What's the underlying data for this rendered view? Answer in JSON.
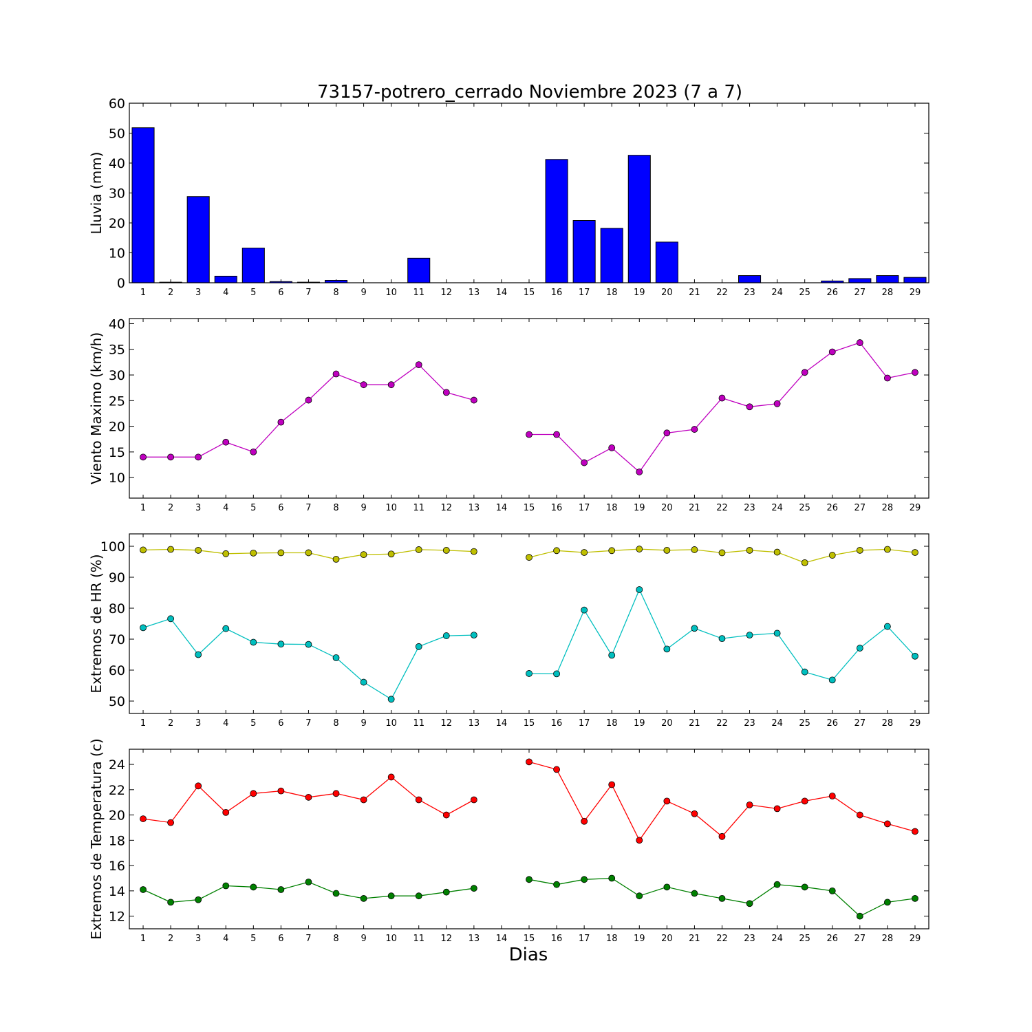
{
  "figure": {
    "title": "73157-potrero_cerrado Noviembre 2023  (7 a 7)",
    "xlabel": "Dias"
  },
  "chart_data": [
    {
      "type": "bar",
      "ylabel": "Lluvia (mm)",
      "ylim": [
        0,
        60
      ],
      "yticks": [
        0,
        10,
        20,
        30,
        40,
        50,
        60
      ],
      "xlim": [
        0.5,
        29.5
      ],
      "xticks": [
        1,
        2,
        3,
        4,
        5,
        6,
        7,
        8,
        9,
        10,
        11,
        12,
        13,
        14,
        15,
        16,
        17,
        18,
        19,
        20,
        21,
        22,
        23,
        24,
        25,
        26,
        27,
        28,
        29
      ],
      "x": [
        1,
        2,
        3,
        4,
        5,
        6,
        7,
        8,
        9,
        10,
        11,
        12,
        13,
        14,
        15,
        16,
        17,
        18,
        19,
        20,
        21,
        22,
        23,
        24,
        25,
        26,
        27,
        28,
        29
      ],
      "series": [
        {
          "color": "#0000ff",
          "values": [
            51.8,
            0.2,
            28.8,
            2.2,
            11.6,
            0.4,
            0.2,
            0.8,
            0,
            0,
            8.2,
            0,
            0,
            0,
            0,
            41.2,
            20.8,
            18.2,
            42.6,
            13.6,
            0,
            0,
            2.4,
            0,
            0,
            0.6,
            1.4,
            2.4,
            1.8
          ]
        }
      ]
    },
    {
      "type": "line",
      "ylabel": "Viento Maximo (km/h)",
      "ylim": [
        6,
        41
      ],
      "yticks": [
        10,
        15,
        20,
        25,
        30,
        35,
        40
      ],
      "xlim": [
        0.5,
        29.5
      ],
      "xticks": [
        1,
        2,
        3,
        4,
        5,
        6,
        7,
        8,
        9,
        10,
        11,
        12,
        13,
        14,
        15,
        16,
        17,
        18,
        19,
        20,
        21,
        22,
        23,
        24,
        25,
        26,
        27,
        28,
        29
      ],
      "x": [
        1,
        2,
        3,
        4,
        5,
        6,
        7,
        8,
        9,
        10,
        11,
        12,
        13,
        14,
        15,
        16,
        17,
        18,
        19,
        20,
        21,
        22,
        23,
        24,
        25,
        26,
        27,
        28,
        29
      ],
      "series": [
        {
          "color": "#bf00bf",
          "values": [
            14.0,
            14.0,
            14.0,
            16.9,
            15.0,
            20.8,
            25.1,
            30.2,
            28.1,
            28.1,
            32.0,
            26.6,
            25.1,
            null,
            18.4,
            18.4,
            12.9,
            15.8,
            11.1,
            18.7,
            19.4,
            25.5,
            23.8,
            24.4,
            30.5,
            34.5,
            36.3,
            29.4,
            30.5
          ]
        }
      ]
    },
    {
      "type": "line",
      "ylabel": "Extremos de HR (%)",
      "ylim": [
        46,
        104
      ],
      "yticks": [
        50,
        60,
        70,
        80,
        90,
        100
      ],
      "xlim": [
        0.5,
        29.5
      ],
      "xticks": [
        1,
        2,
        3,
        4,
        5,
        6,
        7,
        8,
        9,
        10,
        11,
        12,
        13,
        14,
        15,
        16,
        17,
        18,
        19,
        20,
        21,
        22,
        23,
        24,
        25,
        26,
        27,
        28,
        29
      ],
      "x": [
        1,
        2,
        3,
        4,
        5,
        6,
        7,
        8,
        9,
        10,
        11,
        12,
        13,
        14,
        15,
        16,
        17,
        18,
        19,
        20,
        21,
        22,
        23,
        24,
        25,
        26,
        27,
        28,
        29
      ],
      "series": [
        {
          "color": "#bfbf00",
          "values": [
            98.8,
            99.0,
            98.7,
            97.6,
            97.8,
            97.9,
            97.9,
            95.8,
            97.3,
            97.5,
            98.9,
            98.7,
            98.3,
            null,
            96.4,
            98.6,
            98.0,
            98.6,
            99.1,
            98.7,
            98.9,
            97.9,
            98.7,
            98.1,
            94.7,
            97.1,
            98.7,
            99.0,
            98.0
          ]
        },
        {
          "color": "#00bfbf",
          "values": [
            73.7,
            76.6,
            65.0,
            73.4,
            69.0,
            68.4,
            68.3,
            64.0,
            56.1,
            50.6,
            67.6,
            71.1,
            71.3,
            null,
            58.9,
            58.8,
            79.4,
            64.8,
            86.0,
            66.8,
            73.5,
            70.2,
            71.3,
            71.9,
            59.4,
            56.8,
            67.1,
            74.1,
            64.5
          ]
        }
      ]
    },
    {
      "type": "line",
      "ylabel": "Extremos de Temperatura (c)",
      "ylim": [
        11,
        25.2
      ],
      "yticks": [
        12,
        14,
        16,
        18,
        20,
        22,
        24
      ],
      "xlim": [
        0.5,
        29.5
      ],
      "xticks": [
        1,
        2,
        3,
        4,
        5,
        6,
        7,
        8,
        9,
        10,
        11,
        12,
        13,
        14,
        15,
        16,
        17,
        18,
        19,
        20,
        21,
        22,
        23,
        24,
        25,
        26,
        27,
        28,
        29
      ],
      "x": [
        1,
        2,
        3,
        4,
        5,
        6,
        7,
        8,
        9,
        10,
        11,
        12,
        13,
        14,
        15,
        16,
        17,
        18,
        19,
        20,
        21,
        22,
        23,
        24,
        25,
        26,
        27,
        28,
        29
      ],
      "series": [
        {
          "color": "#ff0000",
          "values": [
            19.7,
            19.4,
            22.3,
            20.2,
            21.7,
            21.9,
            21.4,
            21.7,
            21.2,
            23.0,
            21.2,
            20.0,
            21.2,
            null,
            24.2,
            23.6,
            19.5,
            22.4,
            18.0,
            21.1,
            20.1,
            18.3,
            20.8,
            20.5,
            21.1,
            21.5,
            20.0,
            19.3,
            18.7
          ]
        },
        {
          "color": "#008000",
          "values": [
            14.1,
            13.1,
            13.3,
            14.4,
            14.3,
            14.1,
            14.7,
            13.8,
            13.4,
            13.6,
            13.6,
            13.9,
            14.2,
            null,
            14.9,
            14.5,
            14.9,
            15.0,
            13.6,
            14.3,
            13.8,
            13.4,
            13.0,
            14.5,
            14.3,
            14.0,
            12.0,
            13.1,
            13.4
          ]
        }
      ]
    }
  ]
}
